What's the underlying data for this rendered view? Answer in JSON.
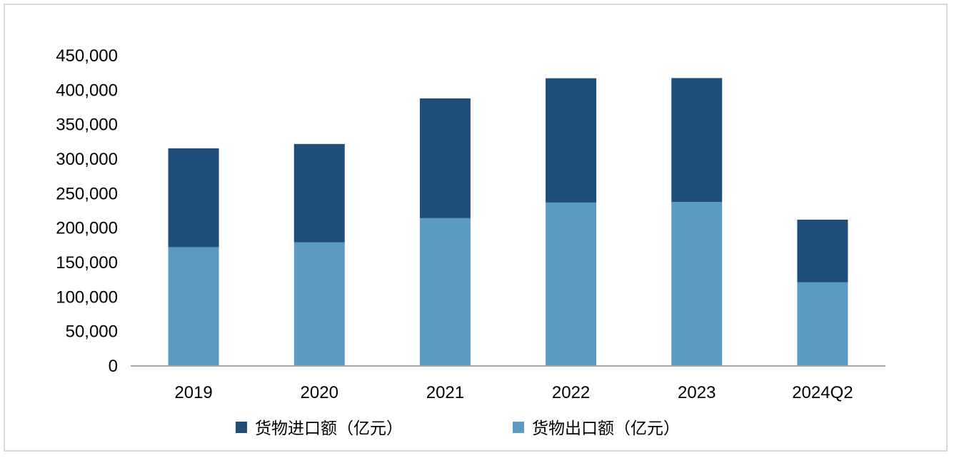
{
  "chart_data": {
    "type": "bar",
    "stacked": true,
    "categories": [
      "2019",
      "2020",
      "2021",
      "2022",
      "2023",
      "2024Q2"
    ],
    "series": [
      {
        "name": "货物出口额（亿元）",
        "color": "#5b9bc1",
        "values": [
          172300,
          179300,
          214300,
          237000,
          237700,
          121300
        ]
      },
      {
        "name": "货物进口额（亿元）",
        "color": "#1f4e79",
        "values": [
          143300,
          142600,
          173700,
          180200,
          179800,
          90900
        ]
      }
    ],
    "legend_order": [
      1,
      0
    ],
    "legend_position": "bottom",
    "ylim": [
      0,
      450000
    ],
    "ytick_step": 50000,
    "ytick_labels": [
      "0",
      "50,000",
      "100,000",
      "150,000",
      "200,000",
      "250,000",
      "300,000",
      "350,000",
      "400,000",
      "450,000"
    ],
    "grid": false,
    "title": "",
    "xlabel": "",
    "ylabel": ""
  }
}
